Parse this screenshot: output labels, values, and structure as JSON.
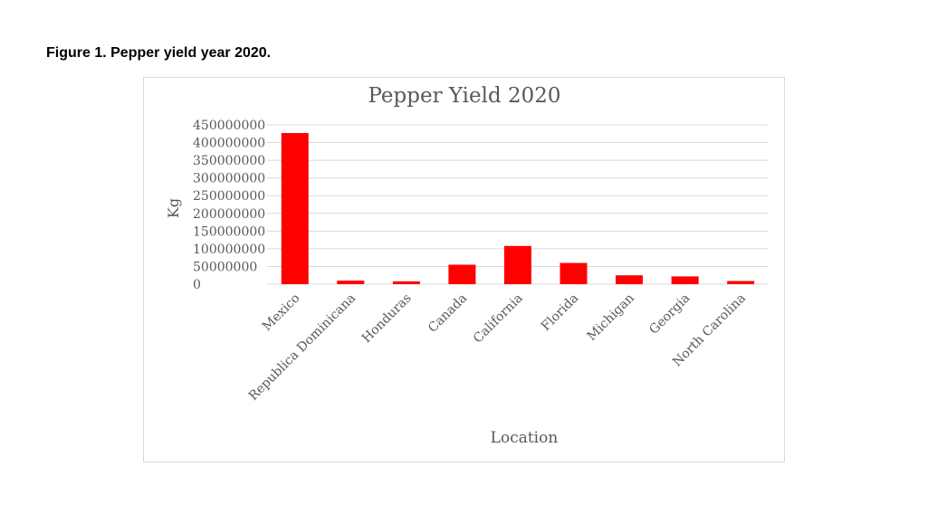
{
  "figure": {
    "caption": "Figure 1. Pepper yield year 2020."
  },
  "chart_data": {
    "type": "bar",
    "title": "Pepper Yield 2020",
    "xlabel": "Location",
    "ylabel": "Kg",
    "categories": [
      "Mexico",
      "Republica Dominicana",
      "Honduras",
      "Canada",
      "California",
      "Florida",
      "Michigan",
      "Georgia",
      "North Carolina"
    ],
    "values": [
      427000000,
      10000000,
      8000000,
      55000000,
      108000000,
      60000000,
      25000000,
      22000000,
      9000000
    ],
    "ylim": [
      0,
      450000000
    ],
    "yticks": [
      "0",
      "50000000",
      "100000000",
      "150000000",
      "200000000",
      "250000000",
      "300000000",
      "350000000",
      "400000000",
      "450000000"
    ],
    "grid": true,
    "legend": "none",
    "bar_color": "#ff0000",
    "grid_color": "#d9d9d9",
    "text_color": "#595959"
  }
}
